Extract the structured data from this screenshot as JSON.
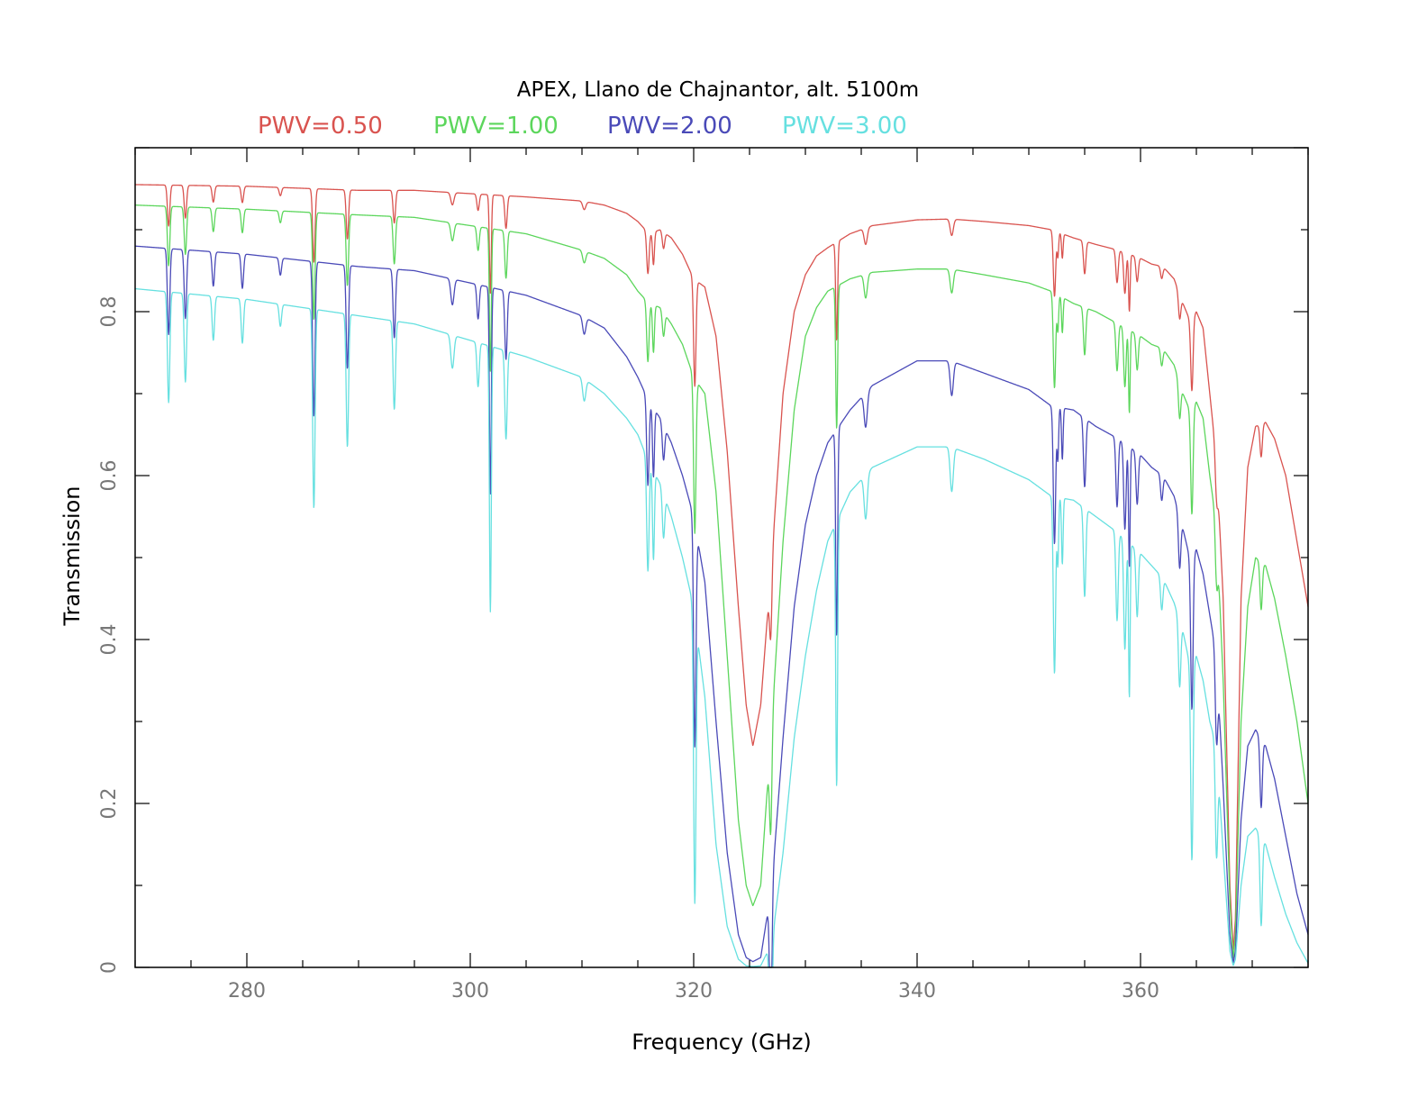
{
  "chart_data": {
    "type": "line",
    "title": "APEX, Llano de Chajnantor, alt. 5100m",
    "xlabel": "Frequency (GHz)",
    "ylabel": "Transmission",
    "xlim": [
      270,
      375
    ],
    "ylim": [
      0,
      1.0
    ],
    "x_major_ticks": [
      280,
      300,
      320,
      340,
      360
    ],
    "x_tick_labels": [
      "280",
      "300",
      "320",
      "340",
      "360"
    ],
    "y_major_ticks": [
      0,
      0.2,
      0.4,
      0.6,
      0.8
    ],
    "y_tick_labels": [
      "0",
      "0.2",
      "0.4",
      "0.6",
      "0.8"
    ],
    "legend_position": "top",
    "grid": false,
    "lines_base": [
      {
        "f": 270.0,
        "w": 0.2,
        "d": 0.0
      },
      {
        "f": 273.0,
        "w": 0.15,
        "d": 0.05
      },
      {
        "f": 274.5,
        "w": 0.15,
        "d": 0.04
      },
      {
        "f": 277.0,
        "w": 0.15,
        "d": 0.02
      },
      {
        "f": 279.6,
        "w": 0.15,
        "d": 0.02
      },
      {
        "f": 283.0,
        "w": 0.15,
        "d": 0.01
      },
      {
        "f": 286.0,
        "w": 0.15,
        "d": 0.09
      },
      {
        "f": 289.0,
        "w": 0.15,
        "d": 0.06
      },
      {
        "f": 293.2,
        "w": 0.15,
        "d": 0.04
      },
      {
        "f": 298.4,
        "w": 0.2,
        "d": 0.015
      },
      {
        "f": 300.7,
        "w": 0.15,
        "d": 0.02
      },
      {
        "f": 301.8,
        "w": 0.12,
        "d": 0.12
      },
      {
        "f": 303.2,
        "w": 0.15,
        "d": 0.04
      },
      {
        "f": 310.2,
        "w": 0.2,
        "d": 0.01
      },
      {
        "f": 315.9,
        "w": 0.15,
        "d": 0.05
      },
      {
        "f": 316.4,
        "w": 0.12,
        "d": 0.04
      },
      {
        "f": 317.3,
        "w": 0.15,
        "d": 0.02
      },
      {
        "f": 320.1,
        "w": 0.15,
        "d": 0.13
      },
      {
        "f": 326.9,
        "w": 0.15,
        "d": 0.08
      },
      {
        "f": 332.8,
        "w": 0.12,
        "d": 0.12
      },
      {
        "f": 335.4,
        "w": 0.2,
        "d": 0.02
      },
      {
        "f": 343.1,
        "w": 0.2,
        "d": 0.02
      },
      {
        "f": 352.3,
        "w": 0.15,
        "d": 0.08
      },
      {
        "f": 352.6,
        "w": 0.1,
        "d": 0.03
      },
      {
        "f": 353.0,
        "w": 0.1,
        "d": 0.03
      },
      {
        "f": 355.0,
        "w": 0.15,
        "d": 0.04
      },
      {
        "f": 357.9,
        "w": 0.15,
        "d": 0.04
      },
      {
        "f": 358.6,
        "w": 0.15,
        "d": 0.05
      },
      {
        "f": 359.0,
        "w": 0.1,
        "d": 0.07
      },
      {
        "f": 359.7,
        "w": 0.15,
        "d": 0.03
      },
      {
        "f": 361.9,
        "w": 0.15,
        "d": 0.015
      },
      {
        "f": 363.5,
        "w": 0.15,
        "d": 0.03
      },
      {
        "f": 364.6,
        "w": 0.15,
        "d": 0.09
      },
      {
        "f": 366.8,
        "w": 0.15,
        "d": 0.05
      },
      {
        "f": 370.8,
        "w": 0.15,
        "d": 0.04
      }
    ],
    "series": [
      {
        "name": "PWV=0.50",
        "color": "#d9534f",
        "keypoints": [
          [
            270,
            0.955
          ],
          [
            280,
            0.953
          ],
          [
            290,
            0.948
          ],
          [
            295,
            0.948
          ],
          [
            300,
            0.944
          ],
          [
            305,
            0.94
          ],
          [
            310,
            0.935
          ],
          [
            312,
            0.93
          ],
          [
            314,
            0.92
          ],
          [
            315,
            0.91
          ],
          [
            316,
            0.895
          ],
          [
            317,
            0.9
          ],
          [
            318,
            0.89
          ],
          [
            319,
            0.87
          ],
          [
            320,
            0.84
          ],
          [
            321,
            0.83
          ],
          [
            322,
            0.77
          ],
          [
            323,
            0.63
          ],
          [
            324,
            0.44
          ],
          [
            324.7,
            0.32
          ],
          [
            325.3,
            0.27
          ],
          [
            326.0,
            0.32
          ],
          [
            327.0,
            0.5
          ],
          [
            328,
            0.7
          ],
          [
            329,
            0.8
          ],
          [
            330,
            0.845
          ],
          [
            331,
            0.868
          ],
          [
            332,
            0.878
          ],
          [
            334,
            0.895
          ],
          [
            336,
            0.905
          ],
          [
            340,
            0.912
          ],
          [
            343,
            0.913
          ],
          [
            346,
            0.91
          ],
          [
            350,
            0.905
          ],
          [
            352,
            0.9
          ],
          [
            354,
            0.89
          ],
          [
            356,
            0.882
          ],
          [
            358,
            0.875
          ],
          [
            360,
            0.865
          ],
          [
            361,
            0.858
          ],
          [
            362,
            0.855
          ],
          [
            363,
            0.84
          ],
          [
            363.8,
            0.81
          ],
          [
            364.4,
            0.79
          ],
          [
            365,
            0.8
          ],
          [
            365.6,
            0.78
          ],
          [
            366.2,
            0.7
          ],
          [
            366.8,
            0.62
          ],
          [
            367.4,
            0.45
          ],
          [
            368,
            0.1
          ],
          [
            368.3,
            0.02
          ],
          [
            368.5,
            0.06
          ],
          [
            369,
            0.45
          ],
          [
            369.6,
            0.61
          ],
          [
            370.3,
            0.66
          ],
          [
            371.2,
            0.665
          ],
          [
            372,
            0.645
          ],
          [
            373,
            0.6
          ],
          [
            374,
            0.52
          ],
          [
            375,
            0.44
          ]
        ]
      },
      {
        "name": "PWV=1.00",
        "color": "#5cd65c",
        "keypoints": [
          [
            270,
            0.93
          ],
          [
            280,
            0.925
          ],
          [
            290,
            0.918
          ],
          [
            295,
            0.915
          ],
          [
            300,
            0.905
          ],
          [
            305,
            0.895
          ],
          [
            310,
            0.875
          ],
          [
            312,
            0.865
          ],
          [
            314,
            0.845
          ],
          [
            315,
            0.825
          ],
          [
            316,
            0.81
          ],
          [
            317,
            0.805
          ],
          [
            318,
            0.785
          ],
          [
            319,
            0.76
          ],
          [
            320,
            0.72
          ],
          [
            321,
            0.7
          ],
          [
            322,
            0.58
          ],
          [
            323,
            0.38
          ],
          [
            324,
            0.18
          ],
          [
            324.7,
            0.1
          ],
          [
            325.3,
            0.075
          ],
          [
            326.0,
            0.1
          ],
          [
            327,
            0.3
          ],
          [
            328,
            0.52
          ],
          [
            329,
            0.68
          ],
          [
            330,
            0.77
          ],
          [
            331,
            0.805
          ],
          [
            332,
            0.825
          ],
          [
            334,
            0.84
          ],
          [
            336,
            0.848
          ],
          [
            340,
            0.852
          ],
          [
            343,
            0.852
          ],
          [
            346,
            0.845
          ],
          [
            350,
            0.835
          ],
          [
            352,
            0.825
          ],
          [
            354,
            0.81
          ],
          [
            356,
            0.8
          ],
          [
            358,
            0.785
          ],
          [
            360,
            0.77
          ],
          [
            361,
            0.76
          ],
          [
            362,
            0.755
          ],
          [
            363,
            0.735
          ],
          [
            363.8,
            0.7
          ],
          [
            364.4,
            0.68
          ],
          [
            365,
            0.69
          ],
          [
            365.6,
            0.67
          ],
          [
            366.2,
            0.6
          ],
          [
            366.8,
            0.54
          ],
          [
            367.4,
            0.35
          ],
          [
            368,
            0.08
          ],
          [
            368.3,
            0.01
          ],
          [
            368.5,
            0.04
          ],
          [
            369,
            0.3
          ],
          [
            369.6,
            0.44
          ],
          [
            370.3,
            0.5
          ],
          [
            371.2,
            0.49
          ],
          [
            372,
            0.45
          ],
          [
            373,
            0.38
          ],
          [
            374,
            0.3
          ],
          [
            375,
            0.2
          ]
        ]
      },
      {
        "name": "PWV=2.00",
        "color": "#4a4ab8",
        "keypoints": [
          [
            270,
            0.88
          ],
          [
            280,
            0.87
          ],
          [
            290,
            0.855
          ],
          [
            295,
            0.85
          ],
          [
            300,
            0.835
          ],
          [
            305,
            0.82
          ],
          [
            310,
            0.795
          ],
          [
            312,
            0.78
          ],
          [
            314,
            0.745
          ],
          [
            315,
            0.72
          ],
          [
            316,
            0.69
          ],
          [
            317,
            0.67
          ],
          [
            318,
            0.64
          ],
          [
            319,
            0.6
          ],
          [
            320,
            0.55
          ],
          [
            321,
            0.47
          ],
          [
            322,
            0.3
          ],
          [
            323,
            0.14
          ],
          [
            324,
            0.04
          ],
          [
            324.7,
            0.012
          ],
          [
            325.3,
            0.007
          ],
          [
            326.0,
            0.012
          ],
          [
            327,
            0.1
          ],
          [
            328,
            0.28
          ],
          [
            329,
            0.44
          ],
          [
            330,
            0.54
          ],
          [
            331,
            0.6
          ],
          [
            332,
            0.64
          ],
          [
            333,
            0.66
          ],
          [
            334,
            0.68
          ],
          [
            336,
            0.71
          ],
          [
            340,
            0.74
          ],
          [
            343,
            0.74
          ],
          [
            346,
            0.725
          ],
          [
            350,
            0.705
          ],
          [
            352,
            0.685
          ],
          [
            354,
            0.68
          ],
          [
            356,
            0.66
          ],
          [
            358,
            0.645
          ],
          [
            360,
            0.625
          ],
          [
            361,
            0.61
          ],
          [
            362,
            0.6
          ],
          [
            363,
            0.575
          ],
          [
            363.8,
            0.535
          ],
          [
            364.4,
            0.5
          ],
          [
            365,
            0.51
          ],
          [
            365.6,
            0.48
          ],
          [
            366.2,
            0.43
          ],
          [
            366.8,
            0.38
          ],
          [
            367.4,
            0.22
          ],
          [
            368,
            0.04
          ],
          [
            368.3,
            0.005
          ],
          [
            368.5,
            0.02
          ],
          [
            369,
            0.18
          ],
          [
            369.6,
            0.27
          ],
          [
            370.3,
            0.29
          ],
          [
            371.2,
            0.27
          ],
          [
            372,
            0.23
          ],
          [
            373,
            0.16
          ],
          [
            374,
            0.09
          ],
          [
            375,
            0.04
          ]
        ]
      },
      {
        "name": "PWV=3.00",
        "color": "#66e0e0",
        "keypoints": [
          [
            270,
            0.828
          ],
          [
            280,
            0.815
          ],
          [
            290,
            0.795
          ],
          [
            295,
            0.785
          ],
          [
            300,
            0.765
          ],
          [
            305,
            0.745
          ],
          [
            310,
            0.72
          ],
          [
            312,
            0.7
          ],
          [
            314,
            0.67
          ],
          [
            315,
            0.65
          ],
          [
            316,
            0.615
          ],
          [
            317,
            0.59
          ],
          [
            318,
            0.55
          ],
          [
            319,
            0.5
          ],
          [
            320,
            0.44
          ],
          [
            321,
            0.33
          ],
          [
            322,
            0.15
          ],
          [
            323,
            0.05
          ],
          [
            324,
            0.01
          ],
          [
            324.7,
            0.002
          ],
          [
            325.3,
            0.001
          ],
          [
            326.0,
            0.002
          ],
          [
            327,
            0.03
          ],
          [
            328,
            0.14
          ],
          [
            329,
            0.28
          ],
          [
            330,
            0.38
          ],
          [
            331,
            0.46
          ],
          [
            332,
            0.52
          ],
          [
            333,
            0.55
          ],
          [
            334,
            0.58
          ],
          [
            336,
            0.61
          ],
          [
            340,
            0.635
          ],
          [
            343,
            0.635
          ],
          [
            346,
            0.62
          ],
          [
            350,
            0.595
          ],
          [
            352,
            0.575
          ],
          [
            354,
            0.57
          ],
          [
            356,
            0.55
          ],
          [
            358,
            0.53
          ],
          [
            360,
            0.505
          ],
          [
            361,
            0.49
          ],
          [
            362,
            0.475
          ],
          [
            363,
            0.445
          ],
          [
            363.8,
            0.41
          ],
          [
            364.4,
            0.37
          ],
          [
            365,
            0.38
          ],
          [
            365.6,
            0.35
          ],
          [
            366.2,
            0.3
          ],
          [
            366.8,
            0.27
          ],
          [
            367.4,
            0.14
          ],
          [
            368,
            0.02
          ],
          [
            368.3,
            0.002
          ],
          [
            368.5,
            0.01
          ],
          [
            369,
            0.1
          ],
          [
            369.6,
            0.16
          ],
          [
            370.3,
            0.17
          ],
          [
            371.2,
            0.15
          ],
          [
            372,
            0.11
          ],
          [
            373,
            0.065
          ],
          [
            374,
            0.03
          ],
          [
            375,
            0.005
          ]
        ]
      }
    ]
  }
}
